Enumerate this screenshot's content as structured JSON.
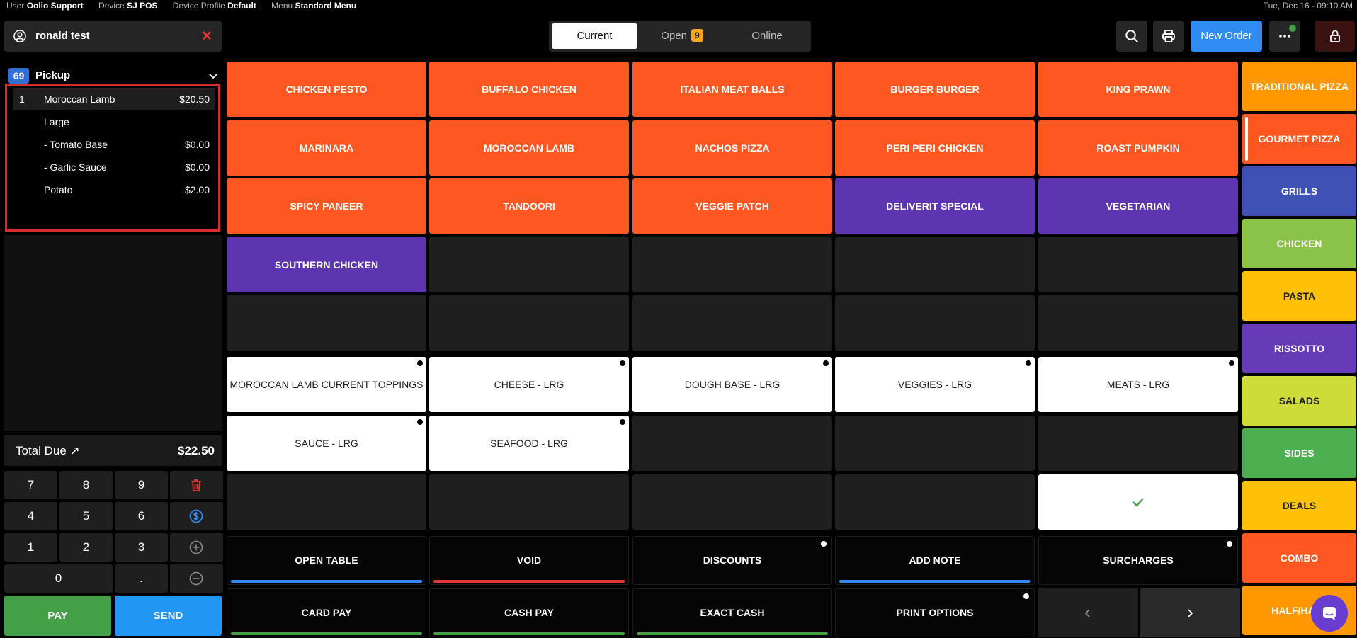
{
  "status_bar": {
    "user_label": "User",
    "user": "Oolio Support",
    "device_label": "Device",
    "device": "SJ POS",
    "profile_label": "Device Profile",
    "profile": "Default",
    "menu_label": "Menu",
    "menu": "Standard Menu",
    "datetime": "Tue, Dec 16 - 09:10 AM"
  },
  "customer": {
    "name": "ronald test",
    "clear_glyph": "✕"
  },
  "tabs": {
    "current": "Current",
    "open": "Open",
    "open_count": "9",
    "online": "Online"
  },
  "header": {
    "new_order": "New Order"
  },
  "order": {
    "number": "69",
    "type": "Pickup",
    "lines": [
      {
        "qty": "1",
        "name": "Moroccan Lamb",
        "price": "$20.50"
      },
      {
        "qty": "",
        "name": "Large",
        "price": ""
      },
      {
        "qty": "",
        "name": "- Tomato Base",
        "price": "$0.00"
      },
      {
        "qty": "",
        "name": "- Garlic Sauce",
        "price": "$0.00"
      },
      {
        "qty": "",
        "name": "Potato",
        "price": "$2.00"
      }
    ],
    "total_label": "Total Due ↗",
    "total": "$22.50"
  },
  "keypad": {
    "keys": [
      "7",
      "8",
      "9",
      "4",
      "5",
      "6",
      "1",
      "2",
      "3",
      "0",
      "."
    ],
    "pay": "PAY",
    "send": "SEND"
  },
  "menu_items": [
    "CHICKEN PESTO",
    "BUFFALO CHICKEN",
    "ITALIAN MEAT BALLS",
    "BURGER BURGER",
    "KING PRAWN",
    "MARINARA",
    "MOROCCAN LAMB",
    "NACHOS PIZZA",
    "PERI PERI CHICKEN",
    "ROAST PUMPKIN",
    "SPICY PANEER",
    "TANDOORI",
    "VEGGIE PATCH",
    "DELIVERIT SPECIAL",
    "VEGETARIAN",
    "SOUTHERN CHICKEN"
  ],
  "modifiers": [
    "MOROCCAN LAMB CURRENT TOPPINGS",
    "CHEESE - LRG",
    "DOUGH BASE - LRG",
    "VEGGIES - LRG",
    "MEATS - LRG",
    "SAUCE - LRG",
    "SEAFOOD - LRG"
  ],
  "actions": {
    "open_table": "OPEN TABLE",
    "void": "VOID",
    "discounts": "DISCOUNTS",
    "add_note": "ADD NOTE",
    "surcharges": "SURCHARGES",
    "card_pay": "CARD PAY",
    "cash_pay": "CASH PAY",
    "exact_cash": "EXACT CASH",
    "print_options": "PRINT OPTIONS"
  },
  "categories": [
    {
      "label": "TRADITIONAL PIZZA",
      "color": "#ff9800"
    },
    {
      "label": "GOURMET PIZZA",
      "color": "#ff5722"
    },
    {
      "label": "GRILLS",
      "color": "#3f51b5"
    },
    {
      "label": "CHICKEN",
      "color": "#8bc34a"
    },
    {
      "label": "PASTA",
      "color": "#ffc107"
    },
    {
      "label": "RISSOTTO",
      "color": "#673ab7"
    },
    {
      "label": "SALADS",
      "color": "#cddc39"
    },
    {
      "label": "SIDES",
      "color": "#4caf50"
    },
    {
      "label": "DEALS",
      "color": "#ffc107"
    },
    {
      "label": "COMBO",
      "color": "#ff5722"
    },
    {
      "label": "HALF/HALF",
      "color": "#ff9800"
    }
  ],
  "colors": {
    "accent_blue": "#2f8cf2",
    "menu_orange": "#ff5722",
    "menu_purple": "#5e35b1",
    "pay_green": "#43a047",
    "void_red": "#e53935",
    "selection_red": "#d32f2f"
  }
}
